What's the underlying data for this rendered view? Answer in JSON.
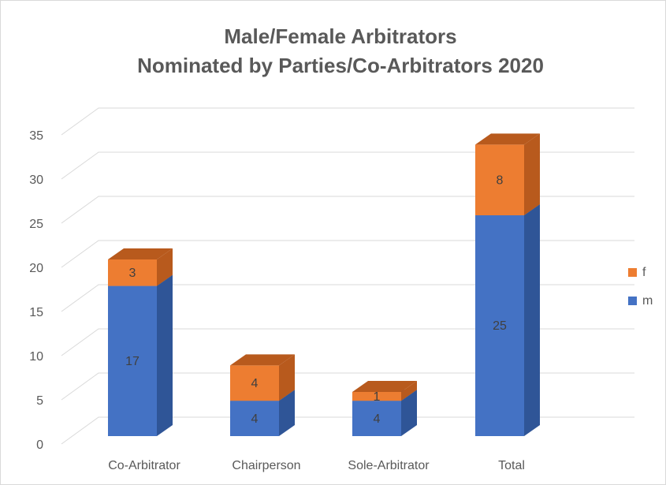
{
  "chart_data": {
    "type": "bar3d_stacked",
    "title": [
      "Male/Female Arbitrators",
      "Nominated by Parties/Co-Arbitrators 2020"
    ],
    "categories": [
      "Co-Arbitrator",
      "Chairperson",
      "Sole-Arbitrator",
      "Total"
    ],
    "series": [
      {
        "name": "m",
        "color": "#4472c4",
        "side_color": "#2f5597",
        "values": [
          17,
          4,
          4,
          25
        ]
      },
      {
        "name": "f",
        "color": "#ed7d31",
        "side_color": "#b85a1d",
        "values": [
          3,
          4,
          1,
          8
        ]
      }
    ],
    "ylim": [
      0,
      35
    ],
    "yticks": [
      0,
      5,
      10,
      15,
      20,
      25,
      30,
      35
    ],
    "grid": true,
    "legend": "right"
  }
}
